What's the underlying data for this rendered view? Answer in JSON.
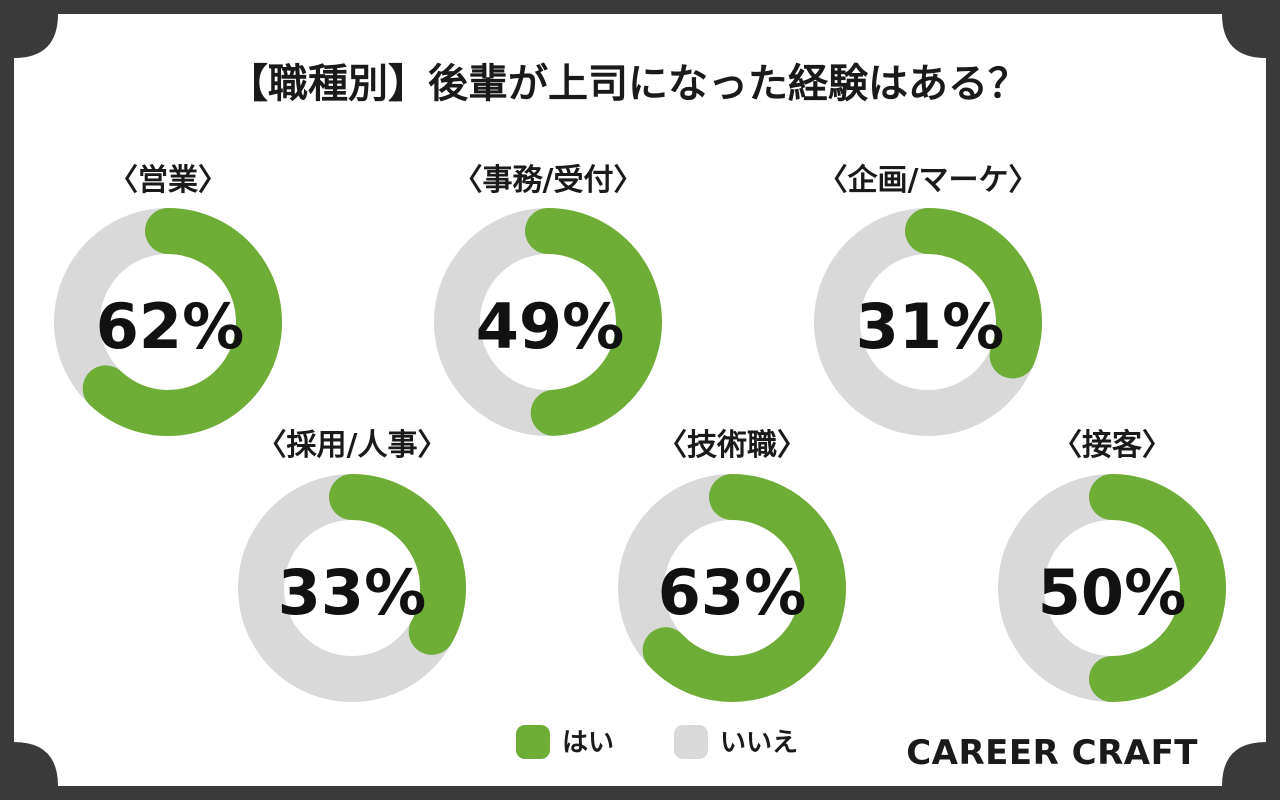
{
  "colors": {
    "yes": "#6fae36",
    "no": "#d9d9d9",
    "frame": "#3a3a3a",
    "panel": "#ffffff",
    "text": "#1a1a1a"
  },
  "brand": "CAREER CRAFT",
  "chart_data": {
    "type": "donut",
    "title": "【職種別】後輩が上司になった経験はある？",
    "legend": [
      {
        "name": "はい",
        "color": "#6fae36"
      },
      {
        "name": "いいえ",
        "color": "#d9d9d9"
      }
    ],
    "charts": [
      {
        "category": "〈営業〉",
        "yes": 62,
        "no": 38,
        "label": "62%"
      },
      {
        "category": "〈事務/受付〉",
        "yes": 49,
        "no": 51,
        "label": "49%"
      },
      {
        "category": "〈企画/マーケ〉",
        "yes": 31,
        "no": 69,
        "label": "31%"
      },
      {
        "category": "〈採用/人事〉",
        "yes": 33,
        "no": 67,
        "label": "33%"
      },
      {
        "category": "〈技術職〉",
        "yes": 63,
        "no": 37,
        "label": "63%"
      },
      {
        "category": "〈接客〉",
        "yes": 50,
        "no": 50,
        "label": "50%"
      }
    ]
  }
}
